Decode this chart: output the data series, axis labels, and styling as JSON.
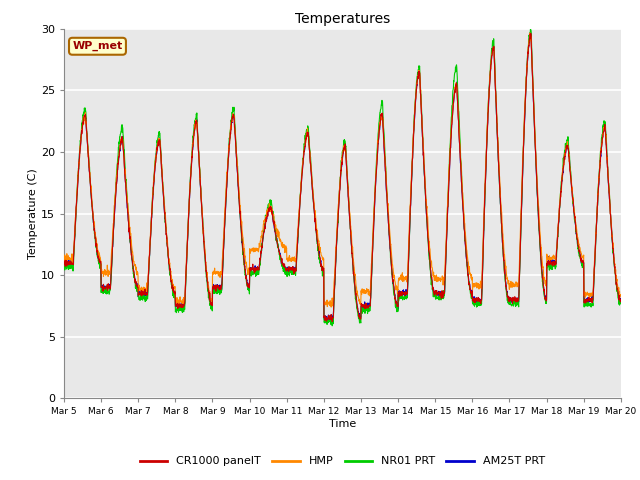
{
  "title": "Temperatures",
  "xlabel": "Time",
  "ylabel": "Temperature (C)",
  "ylim": [
    0,
    30
  ],
  "background_color": "#e8e8e8",
  "grid_color": "white",
  "tick_dates": [
    "Mar 5",
    "Mar 6",
    "Mar 7",
    "Mar 8",
    "Mar 9",
    "Mar 10",
    "Mar 11",
    "Mar 12",
    "Mar 13",
    "Mar 14",
    "Mar 15",
    "Mar 16",
    "Mar 17",
    "Mar 18",
    "Mar 19",
    "Mar 20"
  ],
  "series": {
    "CR1000 panelT": {
      "color": "#cc0000",
      "lw": 0.8
    },
    "HMP": {
      "color": "#ff8800",
      "lw": 0.8
    },
    "NR01 PRT": {
      "color": "#00cc00",
      "lw": 0.8
    },
    "AM25T PRT": {
      "color": "#0000cc",
      "lw": 0.8
    }
  },
  "annotation_text": "WP_met",
  "annotation_bg": "#ffffcc",
  "annotation_border": "#aa6600",
  "annotation_text_color": "#990000",
  "yticks": [
    0,
    5,
    10,
    15,
    20,
    25,
    30
  ],
  "day_peaks": [
    23.0,
    21.0,
    21.0,
    22.5,
    23.0,
    15.5,
    21.5,
    20.5,
    23.0,
    26.5,
    25.5,
    28.5,
    29.5,
    20.5,
    22.0
  ],
  "day_mins": [
    11.0,
    9.0,
    8.5,
    7.5,
    9.0,
    10.5,
    10.5,
    6.5,
    7.5,
    8.5,
    8.5,
    8.0,
    8.0,
    11.0,
    8.0
  ],
  "hmp_extra_min": [
    0.5,
    1.5,
    0.5,
    0.5,
    1.5,
    2.0,
    1.0,
    1.5,
    1.5,
    1.5,
    1.5,
    1.5,
    1.5,
    0.5,
    0.5
  ],
  "nr01_extra_max": [
    0.5,
    1.0,
    0.5,
    0.5,
    0.5,
    0.5,
    0.5,
    0.5,
    1.0,
    0.5,
    1.5,
    0.5,
    0.5,
    0.5,
    0.5
  ]
}
